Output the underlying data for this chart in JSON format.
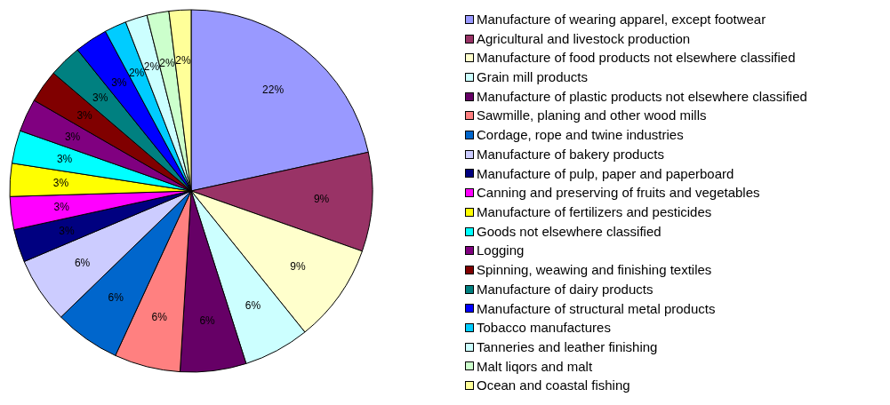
{
  "chart_data": {
    "type": "pie",
    "legend": "right",
    "categories": [
      "Manufacture of wearing apparel, except footwear",
      "Agricultural and livestock production",
      "Manufacture of food products not elsewhere classified",
      "Grain mill products",
      "Manufacture of plastic products not elsewhere classified",
      "Sawmille, planing and other wood mills",
      "Cordage, rope and twine industries",
      "Manufacture of bakery products",
      "Manufacture of pulp, paper and paperboard",
      "Canning and preserving of fruits and vegetables",
      "Manufacture of fertilizers and pesticides",
      "Goods not elsewhere classified",
      "Logging",
      "Spinning, weawing and finishing textiles",
      "Manufacture of dairy products",
      "Manufacture of structural metal products",
      "Tobacco manufactures",
      "Tanneries and leather finishing",
      "Malt liqors and malt",
      "Ocean and coastal fishing"
    ],
    "values": [
      22,
      9,
      9,
      6,
      6,
      6,
      6,
      6,
      3,
      3,
      3,
      3,
      3,
      3,
      3,
      3,
      2,
      2,
      2,
      2
    ],
    "value_labels": [
      "22%",
      "9%",
      "9%",
      "6%",
      "6%",
      "6%",
      "6%",
      "6%",
      "3%",
      "3%",
      "3%",
      "3%",
      "3%",
      "3%",
      "3%",
      "3%",
      "2%",
      "2%",
      "2%",
      "2%"
    ],
    "colors": [
      "#9999ff",
      "#993366",
      "#ffffcc",
      "#ccffff",
      "#660066",
      "#ff8080",
      "#0066cc",
      "#ccccff",
      "#000080",
      "#ff00ff",
      "#ffff00",
      "#00ffff",
      "#800080",
      "#800000",
      "#008080",
      "#0000ff",
      "#00ccff",
      "#ccffff",
      "#ccffcc",
      "#ffff99"
    ]
  }
}
